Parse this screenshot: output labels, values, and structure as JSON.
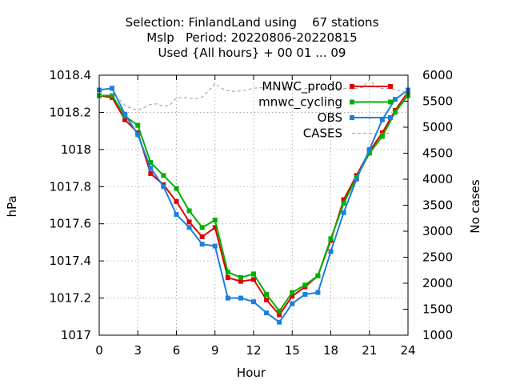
{
  "chart_data": {
    "type": "line",
    "title_lines": [
      "Selection: FinlandLand using    67 stations",
      "Mslp   Period: 20220806-20220815",
      "Used {All hours} + 00 01 ... 09"
    ],
    "xlabel": "Hour",
    "ylabel": "hPa",
    "y2label": "No cases",
    "xlim": [
      0,
      24
    ],
    "ylim": [
      1017.0,
      1018.4
    ],
    "y2lim": [
      1000,
      6000
    ],
    "x_ticks": [
      0,
      3,
      6,
      9,
      12,
      15,
      18,
      21,
      24
    ],
    "y_ticks": [
      1017,
      1017.2,
      1017.4,
      1017.6,
      1017.8,
      1018,
      1018.2,
      1018.4
    ],
    "y_tick_labels": [
      "1017",
      "1017.2",
      "1017.4",
      "1017.6",
      "1017.8",
      "1018",
      "1018.2",
      "1018.4"
    ],
    "y2_ticks": [
      1000,
      1500,
      2000,
      2500,
      3000,
      3500,
      4000,
      4500,
      5000,
      5500,
      6000
    ],
    "grid": true,
    "legend_position": "top-right",
    "x": [
      0,
      1,
      2,
      3,
      4,
      5,
      6,
      7,
      8,
      9,
      10,
      11,
      12,
      13,
      14,
      15,
      16,
      17,
      18,
      19,
      20,
      21,
      22,
      23,
      24
    ],
    "series": [
      {
        "name": "MNWC_prod0",
        "color": "#e00000",
        "marker": "square",
        "axis": "y",
        "values": [
          1018.29,
          1018.28,
          1018.16,
          1018.09,
          1017.87,
          1017.81,
          1017.72,
          1017.61,
          1017.53,
          1017.58,
          1017.31,
          1017.29,
          1017.3,
          1017.19,
          1017.11,
          1017.21,
          1017.26,
          1017.32,
          1017.51,
          1017.73,
          1017.86,
          1017.99,
          1018.09,
          1018.21,
          1018.31
        ]
      },
      {
        "name": "mnwc_cycling",
        "color": "#00b000",
        "marker": "square",
        "axis": "y",
        "values": [
          1018.29,
          1018.29,
          1018.18,
          1018.13,
          1017.93,
          1017.86,
          1017.79,
          1017.67,
          1017.58,
          1017.62,
          1017.34,
          1017.31,
          1017.33,
          1017.22,
          1017.13,
          1017.23,
          1017.27,
          1017.32,
          1017.52,
          1017.71,
          1017.85,
          1017.98,
          1018.07,
          1018.2,
          1018.29
        ]
      },
      {
        "name": "OBS",
        "color": "#1a7fe0",
        "marker": "square",
        "axis": "y",
        "values": [
          1018.32,
          1018.33,
          1018.19,
          1018.08,
          1017.9,
          1017.8,
          1017.65,
          1017.58,
          1017.49,
          1017.48,
          1017.2,
          1017.2,
          1017.18,
          1017.12,
          1017.07,
          1017.17,
          1017.22,
          1017.23,
          1017.45,
          1017.66,
          1017.84,
          1018.0,
          1018.16,
          1018.27,
          1018.32
        ]
      },
      {
        "name": "CASES",
        "color": "#999999",
        "marker": "none",
        "dash": true,
        "axis": "y2",
        "x": [
          0,
          0.5,
          1,
          1.5,
          2,
          2.5,
          3,
          3.5,
          4,
          4.5,
          5,
          5.5,
          6,
          6.5,
          7,
          7.5,
          8,
          8.5,
          9,
          9.5,
          10,
          10.5,
          11,
          11.5,
          12,
          12.5,
          13,
          13.5,
          14,
          14.5,
          15,
          15.5,
          16,
          16.5,
          17,
          17.5,
          18,
          18.5,
          19,
          19.5,
          20,
          20.5,
          21,
          21.5,
          22,
          22.5,
          23,
          23.5,
          24
        ],
        "values": [
          5600,
          5620,
          5640,
          5550,
          5420,
          5360,
          5330,
          5380,
          5440,
          5450,
          5400,
          5430,
          5560,
          5570,
          5560,
          5550,
          5580,
          5700,
          5840,
          5750,
          5700,
          5690,
          5700,
          5720,
          5750,
          5760,
          5750,
          5740,
          5740,
          5760,
          5760,
          5750,
          5740,
          5750,
          5760,
          5750,
          5740,
          5750,
          5740,
          5750,
          5740,
          5770,
          5920,
          5780,
          5740,
          5750,
          5720,
          5700,
          5650
        ]
      }
    ]
  }
}
